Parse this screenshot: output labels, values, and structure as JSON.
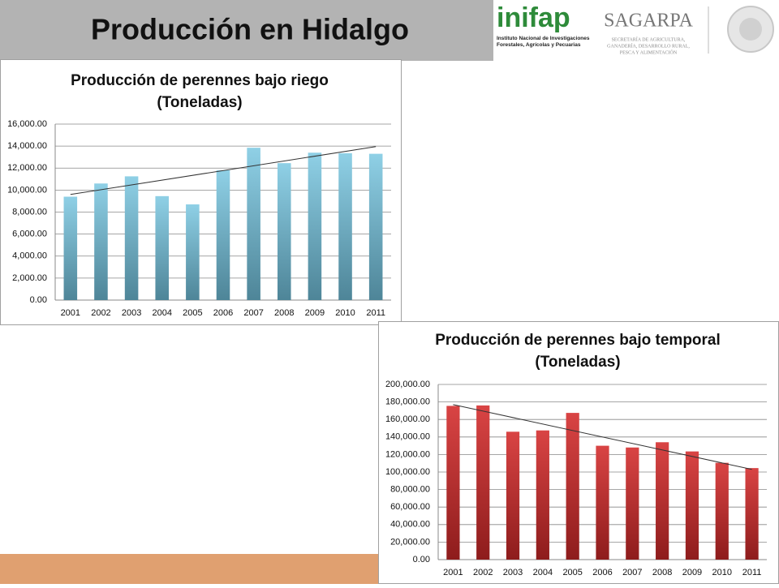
{
  "header": {
    "title": "Producción en Hidalgo",
    "logo1": "inifap",
    "logo1_caption": "Instituto Nacional de Investigaciones Forestales, Agrícolas y Pecuarias",
    "logo2": "SAGARPA",
    "logo2_caption": [
      "SECRETARÍA DE AGRICULTURA,",
      "GANADERÍA, DESARROLLO RURAL,",
      "PESCA Y ALIMENTACIÓN"
    ]
  },
  "chart_data": [
    {
      "type": "bar",
      "title": [
        "Producción de perennes bajo riego",
        "(Toneladas)"
      ],
      "categories": [
        "2001",
        "2002",
        "2003",
        "2004",
        "2005",
        "2006",
        "2007",
        "2008",
        "2009",
        "2010",
        "2011"
      ],
      "values": [
        9400,
        10600,
        11250,
        9450,
        8700,
        11800,
        13850,
        12450,
        13400,
        13350,
        13300
      ],
      "color": "#7fc0d8",
      "trend": [
        9600,
        13950
      ],
      "grid": true,
      "ylim": [
        0,
        16000
      ],
      "yticks": [
        {
          "value": 0,
          "label": "0.00"
        },
        {
          "value": 2000,
          "label": "2,000.00"
        },
        {
          "value": 4000,
          "label": "4,000.00"
        },
        {
          "value": 6000,
          "label": "6,000.00"
        },
        {
          "value": 8000,
          "label": "8,000.00"
        },
        {
          "value": 10000,
          "label": "10,000.00"
        },
        {
          "value": 12000,
          "label": "12,000.00"
        },
        {
          "value": 14000,
          "label": "14,000.00"
        },
        {
          "value": 16000,
          "label": "16,000.00"
        }
      ]
    },
    {
      "type": "bar",
      "title": [
        "Producción de perennes bajo temporal",
        "(Toneladas)"
      ],
      "categories": [
        "2001",
        "2002",
        "2003",
        "2004",
        "2005",
        "2006",
        "2007",
        "2008",
        "2009",
        "2010",
        "2011"
      ],
      "values": [
        175500,
        176000,
        146000,
        147500,
        167500,
        130000,
        128000,
        134000,
        123500,
        110500,
        104500
      ],
      "color": "#d03a3a",
      "trend": [
        177000,
        103000
      ],
      "grid": true,
      "ylim": [
        0,
        200000
      ],
      "yticks": [
        {
          "value": 0,
          "label": "0.00"
        },
        {
          "value": 20000,
          "label": "20,000.00"
        },
        {
          "value": 40000,
          "label": "40,000.00"
        },
        {
          "value": 60000,
          "label": "60,000.00"
        },
        {
          "value": 80000,
          "label": "80,000.00"
        },
        {
          "value": 100000,
          "label": "100,000.00"
        },
        {
          "value": 120000,
          "label": "120,000.00"
        },
        {
          "value": 140000,
          "label": "140,000.00"
        },
        {
          "value": 160000,
          "label": "160,000.00"
        },
        {
          "value": 180000,
          "label": "180,000.00"
        },
        {
          "value": 200000,
          "label": "200,000.00"
        }
      ]
    }
  ]
}
